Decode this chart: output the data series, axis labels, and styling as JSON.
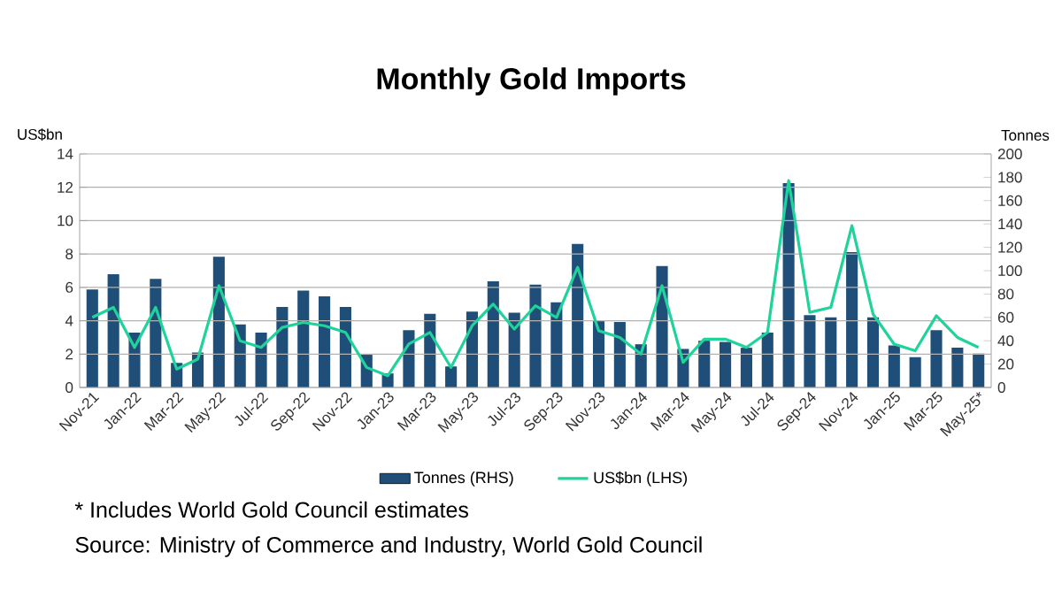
{
  "chart_data": {
    "type": "bar",
    "title": "Monthly Gold Imports",
    "ylabel": "US$bn",
    "y2label": "Tonnes",
    "categories": [
      "Nov-21",
      null,
      "Jan-22",
      null,
      "Mar-22",
      null,
      "May-22",
      null,
      "Jul-22",
      null,
      "Sep-22",
      null,
      "Nov-22",
      null,
      "Jan-23",
      null,
      "Mar-23",
      null,
      "May-23",
      null,
      "Jul-23",
      null,
      "Sep-23",
      null,
      "Nov-23",
      null,
      "Jan-24",
      null,
      "Mar-24",
      null,
      "May-24",
      null,
      "Jul-24",
      null,
      "Sep-24",
      null,
      "Nov-24",
      null,
      "Jan-25",
      null,
      "Mar-25",
      null,
      "May-25*"
    ],
    "series": [
      {
        "name": "Tonnes (RHS)",
        "axis": "y2",
        "color": "#1f4e79",
        "values": [
          84,
          97,
          47,
          93,
          21,
          30,
          112,
          54,
          47,
          69,
          83,
          78,
          69,
          28,
          12,
          49,
          63,
          18,
          65,
          91,
          64,
          88,
          73,
          123,
          57,
          56,
          37,
          104,
          33,
          40,
          39,
          34,
          47,
          175,
          62,
          60,
          116,
          60,
          36,
          26,
          49,
          34,
          29
        ]
      },
      {
        "name": "US$bn (LHS)",
        "type": "line",
        "color": "#1fd39a",
        "values": [
          4.2,
          4.8,
          2.4,
          4.8,
          1.1,
          1.7,
          6.1,
          2.8,
          2.4,
          3.6,
          3.9,
          3.7,
          3.3,
          1.2,
          0.7,
          2.6,
          3.3,
          1.2,
          3.7,
          5.0,
          3.5,
          4.9,
          4.2,
          7.2,
          3.4,
          3.0,
          2.0,
          6.1,
          1.5,
          2.9,
          2.9,
          2.4,
          3.3,
          12.4,
          4.5,
          4.8,
          9.7,
          4.4,
          2.6,
          2.2,
          4.3,
          3.0,
          2.4
        ]
      }
    ],
    "ylim": [
      0,
      14
    ],
    "yticks": [
      0,
      2,
      4,
      6,
      8,
      10,
      12,
      14
    ],
    "y2lim": [
      0,
      200
    ],
    "y2ticks": [
      0,
      20,
      40,
      60,
      80,
      100,
      120,
      140,
      160,
      180,
      200
    ],
    "grid": "y",
    "legend": "bottom",
    "annotations": [
      "* Includes World Gold Council estimates",
      "Source: Ministry of Commerce and Industry, World Gold Council"
    ]
  }
}
